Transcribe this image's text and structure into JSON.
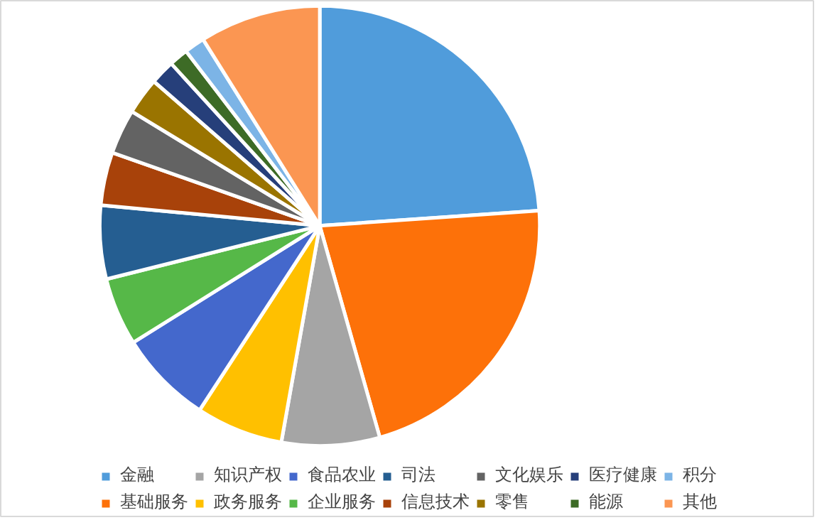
{
  "chart_data": {
    "type": "pie",
    "categories": [
      "金融",
      "基础服务",
      "知识产权",
      "政务服务",
      "食品农业",
      "企业服务",
      "司法",
      "信息技术",
      "文化娱乐",
      "零售",
      "医疗健康",
      "能源",
      "积分",
      "其他"
    ],
    "values": [
      23.9,
      21.7,
      7.2,
      6.4,
      6.9,
      5.0,
      5.4,
      3.9,
      3.3,
      2.7,
      1.8,
      1.4,
      1.5,
      8.9
    ],
    "colors": [
      "#509cdb",
      "#fd7109",
      "#a5a5a5",
      "#ffc000",
      "#4468cc",
      "#56b848",
      "#255e91",
      "#a8420a",
      "#636363",
      "#9a7400",
      "#263f7a",
      "#3d6b26",
      "#7cb4e6",
      "#fb9652"
    ],
    "legend": "bottom"
  }
}
